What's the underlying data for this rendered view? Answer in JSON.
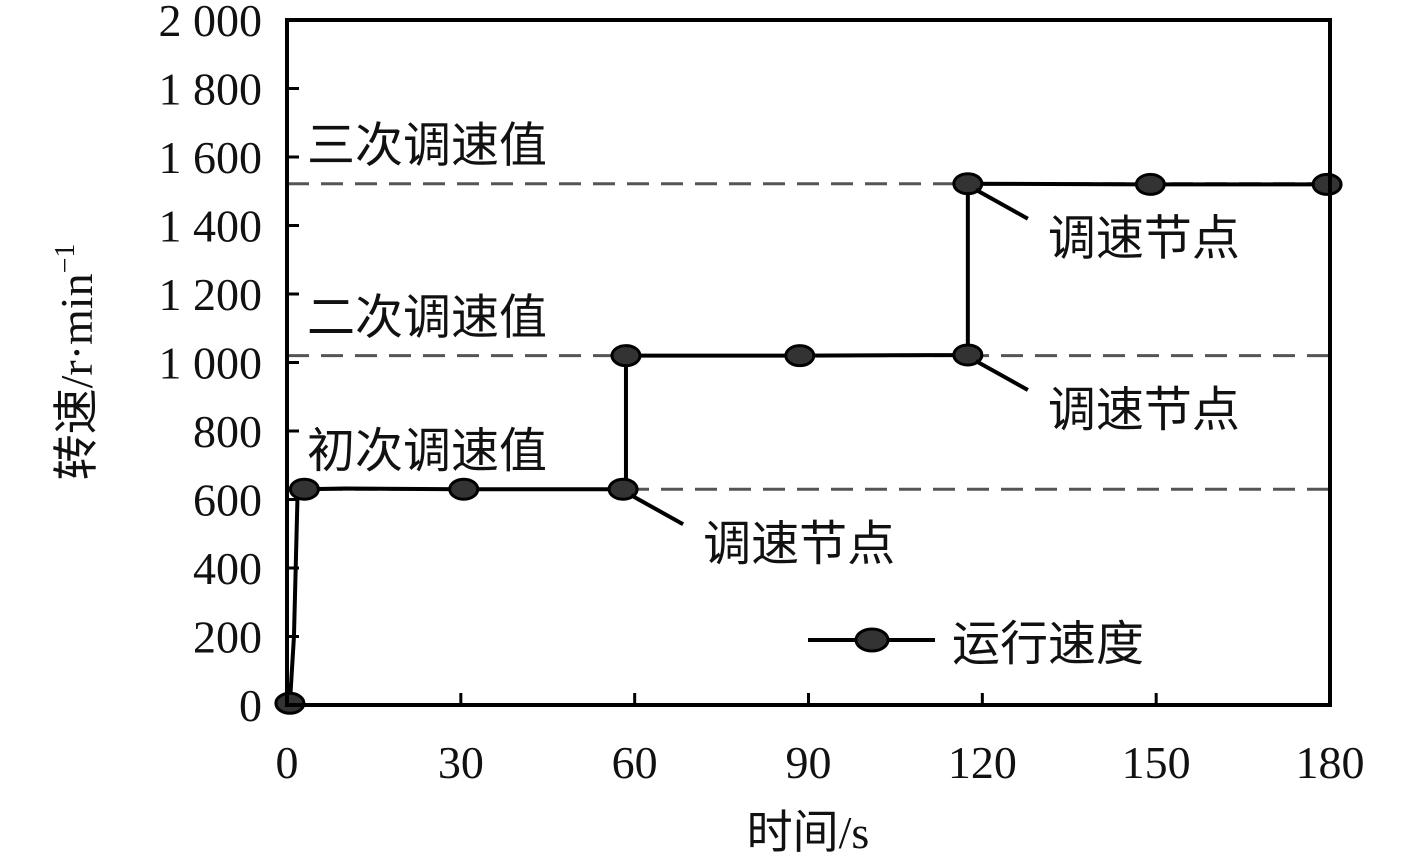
{
  "chart_data": {
    "type": "line",
    "title": "",
    "xlabel": "时间/s",
    "ylabel": "转速/r·min",
    "ylabel_superscript": "−1",
    "xlim": [
      0,
      180
    ],
    "ylim": [
      0,
      2000
    ],
    "xticks": [
      0,
      30,
      60,
      90,
      120,
      150,
      180
    ],
    "xtick_labels": [
      "0",
      "30",
      "60",
      "90",
      "120",
      "150",
      "180"
    ],
    "yticks": [
      0,
      200,
      400,
      600,
      800,
      1000,
      1200,
      1400,
      1600,
      1800,
      2000
    ],
    "ytick_labels": [
      "0",
      "200",
      "400",
      "600",
      "800",
      "1 000",
      "1 200",
      "1 400",
      "1 600",
      "1 800",
      "2 000"
    ],
    "grid": false,
    "legend_position": "bottom-right",
    "series": [
      {
        "name": "运行速度",
        "color": "#000000",
        "marker_color": "#333333",
        "line": [
          [
            0.5,
            5
          ],
          [
            1.2,
            200
          ],
          [
            1.8,
            600
          ],
          [
            3,
            630
          ],
          [
            10,
            632
          ],
          [
            30,
            630
          ],
          [
            58,
            630
          ],
          [
            58.5,
            630
          ],
          [
            58.5,
            1020
          ],
          [
            89,
            1020
          ],
          [
            117.5,
            1022
          ],
          [
            117.5,
            1522
          ],
          [
            149,
            1520
          ],
          [
            180,
            1520
          ]
        ],
        "markers": [
          [
            0.5,
            5
          ],
          [
            3,
            630
          ],
          [
            30.5,
            630
          ],
          [
            58,
            630
          ],
          [
            58.5,
            1020
          ],
          [
            88.5,
            1020
          ],
          [
            117.5,
            1022
          ],
          [
            117.5,
            1522
          ],
          [
            149,
            1520
          ],
          [
            179.5,
            1520
          ]
        ]
      }
    ],
    "reference_lines": [
      {
        "y": 630,
        "label": "初次调速值",
        "color": "#555555",
        "style": "dashed"
      },
      {
        "y": 1020,
        "label": "二次调速值",
        "color": "#555555",
        "style": "dashed"
      },
      {
        "y": 1522,
        "label": "三次调速值",
        "color": "#555555",
        "style": "dashed"
      }
    ],
    "annotations": [
      {
        "text": "调速节点",
        "point": [
          58,
          630
        ]
      },
      {
        "text": "调速节点",
        "point": [
          117.5,
          1022
        ]
      },
      {
        "text": "调速节点",
        "point": [
          117.5,
          1522
        ]
      }
    ]
  }
}
